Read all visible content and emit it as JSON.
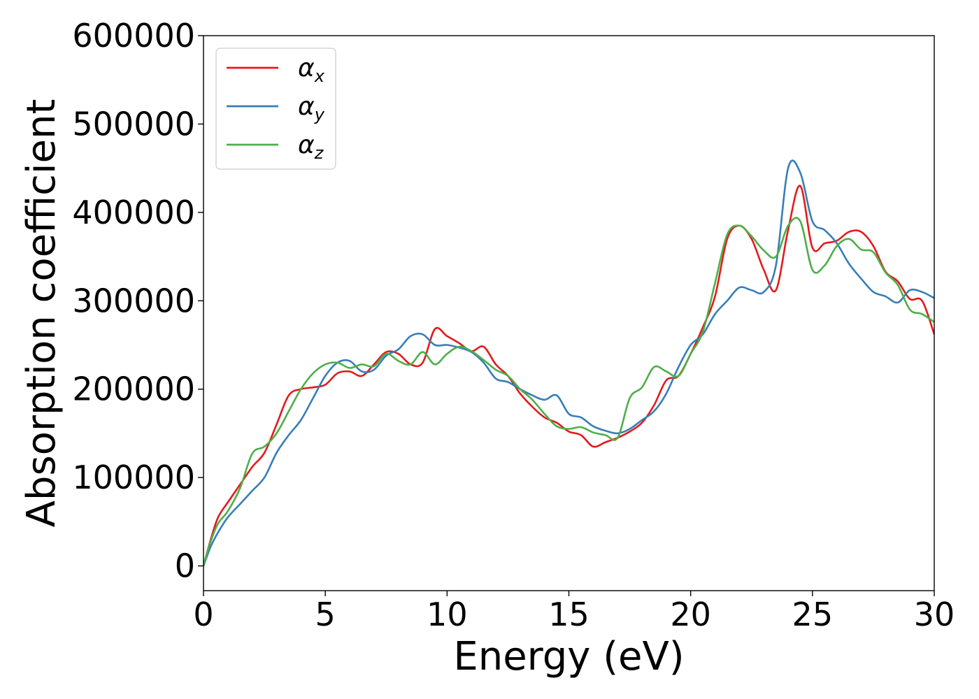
{
  "chart_data": {
    "type": "line",
    "title": "",
    "xlabel": "Energy (eV)",
    "ylabel": "Absorption coefficient",
    "xlim": [
      0,
      30
    ],
    "ylim": [
      -28000,
      600000
    ],
    "xticks": [
      0,
      5,
      10,
      15,
      20,
      25,
      30
    ],
    "yticks": [
      0,
      100000,
      200000,
      300000,
      400000,
      500000,
      600000
    ],
    "xtick_labels": [
      "0",
      "5",
      "10",
      "15",
      "20",
      "25",
      "30"
    ],
    "ytick_labels": [
      "0",
      "100000",
      "200000",
      "300000",
      "400000",
      "500000",
      "600000"
    ],
    "grid": false,
    "legend_position": "top-left",
    "series": [
      {
        "name": "α",
        "subscript": "x",
        "color": "#e41a1c",
        "x": [
          0,
          0.3,
          0.6,
          1,
          1.5,
          2,
          2.5,
          3,
          3.5,
          4,
          4.5,
          5,
          5.5,
          6,
          6.5,
          7,
          7.5,
          8,
          8.5,
          9,
          9.5,
          10,
          10.5,
          11,
          11.5,
          12,
          12.5,
          13,
          13.5,
          14,
          14.5,
          15,
          15.5,
          16,
          16.5,
          17,
          17.5,
          18,
          18.5,
          19,
          19.5,
          20,
          20.5,
          21,
          21.5,
          22,
          22.5,
          23,
          23.5,
          24,
          24.5,
          25,
          25.5,
          26,
          26.5,
          27,
          27.5,
          28,
          28.5,
          29,
          29.5,
          30
        ],
        "values": [
          0,
          30000,
          55000,
          72000,
          92000,
          112000,
          128000,
          160000,
          193000,
          200000,
          202000,
          205000,
          218000,
          220000,
          215000,
          228000,
          242000,
          240000,
          228000,
          230000,
          268000,
          260000,
          252000,
          243000,
          248000,
          228000,
          215000,
          195000,
          180000,
          168000,
          162000,
          152000,
          148000,
          135000,
          140000,
          145000,
          152000,
          162000,
          182000,
          210000,
          215000,
          240000,
          270000,
          305000,
          370000,
          385000,
          370000,
          335000,
          312000,
          380000,
          430000,
          360000,
          365000,
          368000,
          378000,
          378000,
          362000,
          333000,
          322000,
          302000,
          300000,
          262000
        ]
      },
      {
        "name": "α",
        "subscript": "y",
        "color": "#377eb8",
        "x": [
          0,
          0.3,
          0.6,
          1,
          1.5,
          2,
          2.5,
          3,
          3.5,
          4,
          4.5,
          5,
          5.5,
          6,
          6.5,
          7,
          7.5,
          8,
          8.5,
          9,
          9.5,
          10,
          10.5,
          11,
          11.5,
          12,
          12.5,
          13,
          13.5,
          14,
          14.5,
          15,
          15.5,
          16,
          16.5,
          17,
          17.5,
          18,
          18.5,
          19,
          19.5,
          20,
          20.5,
          21,
          21.5,
          22,
          22.5,
          23,
          23.5,
          24,
          24.5,
          25,
          25.5,
          26,
          26.5,
          27,
          27.5,
          28,
          28.5,
          29,
          29.5,
          30
        ],
        "values": [
          0,
          22000,
          38000,
          55000,
          70000,
          85000,
          100000,
          128000,
          148000,
          165000,
          190000,
          215000,
          230000,
          232000,
          220000,
          222000,
          238000,
          245000,
          260000,
          262000,
          250000,
          250000,
          247000,
          242000,
          230000,
          212000,
          208000,
          200000,
          193000,
          188000,
          193000,
          172000,
          168000,
          158000,
          153000,
          150000,
          155000,
          165000,
          175000,
          195000,
          225000,
          250000,
          262000,
          285000,
          300000,
          315000,
          312000,
          310000,
          340000,
          450000,
          445000,
          390000,
          380000,
          365000,
          342000,
          325000,
          310000,
          305000,
          298000,
          312000,
          310000,
          303000
        ]
      },
      {
        "name": "α",
        "subscript": "z",
        "color": "#4daf4a",
        "x": [
          0,
          0.3,
          0.6,
          1,
          1.5,
          2,
          2.5,
          3,
          3.5,
          4,
          4.5,
          5,
          5.5,
          6,
          6.5,
          7,
          7.5,
          8,
          8.5,
          9,
          9.5,
          10,
          10.5,
          11,
          11.5,
          12,
          12.5,
          13,
          13.5,
          14,
          14.5,
          15,
          15.5,
          16,
          16.5,
          17,
          17.5,
          18,
          18.5,
          19,
          19.5,
          20,
          20.5,
          21,
          21.5,
          22,
          22.5,
          23,
          23.5,
          24,
          24.5,
          25,
          25.5,
          26,
          26.5,
          27,
          27.5,
          28,
          28.5,
          29,
          29.5,
          30
        ],
        "values": [
          0,
          28000,
          48000,
          62000,
          88000,
          127000,
          135000,
          150000,
          175000,
          200000,
          218000,
          228000,
          230000,
          224000,
          228000,
          226000,
          240000,
          232000,
          228000,
          242000,
          228000,
          240000,
          248000,
          243000,
          233000,
          222000,
          215000,
          200000,
          188000,
          172000,
          158000,
          155000,
          157000,
          151000,
          148000,
          145000,
          190000,
          202000,
          225000,
          220000,
          215000,
          240000,
          265000,
          320000,
          375000,
          385000,
          373000,
          357000,
          350000,
          385000,
          390000,
          335000,
          340000,
          362000,
          370000,
          358000,
          355000,
          332000,
          318000,
          290000,
          285000,
          276000
        ]
      }
    ]
  }
}
